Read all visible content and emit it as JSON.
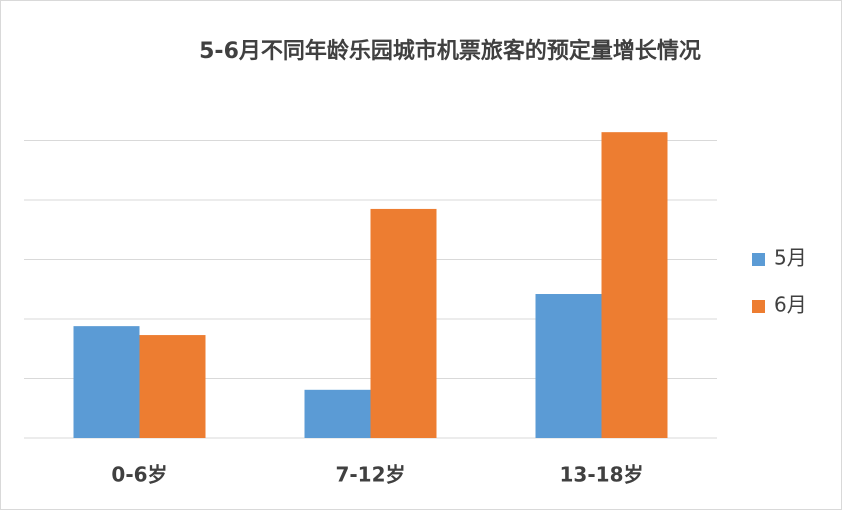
{
  "chart_data": {
    "type": "bar",
    "title": "5-6月不同年龄乐园城市机票旅客的预定量增长情况",
    "categories": [
      "0-6岁",
      "7-12岁",
      "13-18岁"
    ],
    "series": [
      {
        "name": "5月",
        "color": "#5b9bd5",
        "values": [
          1.88,
          0.81,
          2.42
        ]
      },
      {
        "name": "6月",
        "color": "#ed7d31",
        "values": [
          1.73,
          3.85,
          5.14
        ]
      }
    ],
    "ylim": [
      0,
      6
    ],
    "yticks": [
      0,
      1,
      2,
      3,
      4,
      5
    ],
    "grid": true,
    "legend": "right"
  }
}
